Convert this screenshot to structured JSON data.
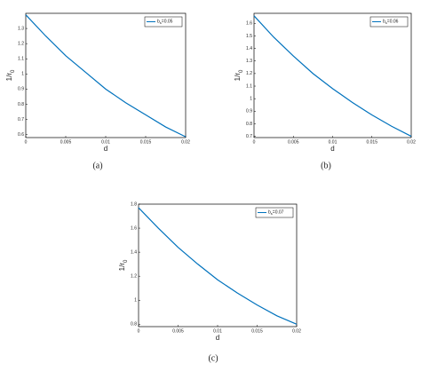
{
  "chart_data": [
    {
      "type": "line",
      "caption": "(a)",
      "xlabel": "d",
      "ylabel": "1/r",
      "ylabel_sub": "0",
      "x": [
        0,
        0.0025,
        0.005,
        0.0075,
        0.01,
        0.0125,
        0.015,
        0.0175,
        0.02
      ],
      "series": [
        {
          "name": "b",
          "name_sub": "s",
          "name_rest": "=0.05",
          "color": "#0072bd",
          "values": [
            1.39,
            1.25,
            1.12,
            1.01,
            0.9,
            0.81,
            0.73,
            0.65,
            0.585
          ]
        }
      ],
      "xlim": [
        0,
        0.02
      ],
      "xticks": [
        0,
        0.005,
        0.01,
        0.015,
        0.02
      ],
      "ylim": [
        0.58,
        1.4
      ],
      "yticks": [
        0.6,
        0.7,
        0.8,
        0.9,
        1,
        1.1,
        1.2,
        1.3
      ]
    },
    {
      "type": "line",
      "caption": "(b)",
      "xlabel": "d",
      "ylabel": "1/r",
      "ylabel_sub": "0",
      "x": [
        0,
        0.0025,
        0.005,
        0.0075,
        0.01,
        0.0125,
        0.015,
        0.0175,
        0.02
      ],
      "series": [
        {
          "name": "b",
          "name_sub": "s",
          "name_rest": "=0.06",
          "color": "#0072bd",
          "values": [
            1.66,
            1.49,
            1.34,
            1.2,
            1.08,
            0.97,
            0.87,
            0.78,
            0.7
          ]
        }
      ],
      "xlim": [
        0,
        0.02
      ],
      "xticks": [
        0,
        0.005,
        0.01,
        0.015,
        0.02
      ],
      "ylim": [
        0.69,
        1.68
      ],
      "yticks": [
        0.7,
        0.8,
        0.9,
        1,
        1.1,
        1.2,
        1.3,
        1.4,
        1.5,
        1.6
      ]
    },
    {
      "type": "line",
      "caption": "(c)",
      "xlabel": "d",
      "ylabel": "1/r",
      "ylabel_sub": "0",
      "x": [
        0,
        0.0025,
        0.005,
        0.0075,
        0.01,
        0.0125,
        0.015,
        0.0175,
        0.02
      ],
      "series": [
        {
          "name": "b",
          "name_sub": "s",
          "name_rest": "=0.07",
          "color": "#0072bd",
          "values": [
            1.77,
            1.6,
            1.44,
            1.3,
            1.17,
            1.06,
            0.96,
            0.87,
            0.8
          ]
        }
      ],
      "xlim": [
        0,
        0.02
      ],
      "xticks": [
        0,
        0.005,
        0.01,
        0.015,
        0.02
      ],
      "ylim": [
        0.78,
        1.8
      ],
      "yticks": [
        0.8,
        1,
        1.2,
        1.4,
        1.6,
        1.8
      ]
    }
  ]
}
